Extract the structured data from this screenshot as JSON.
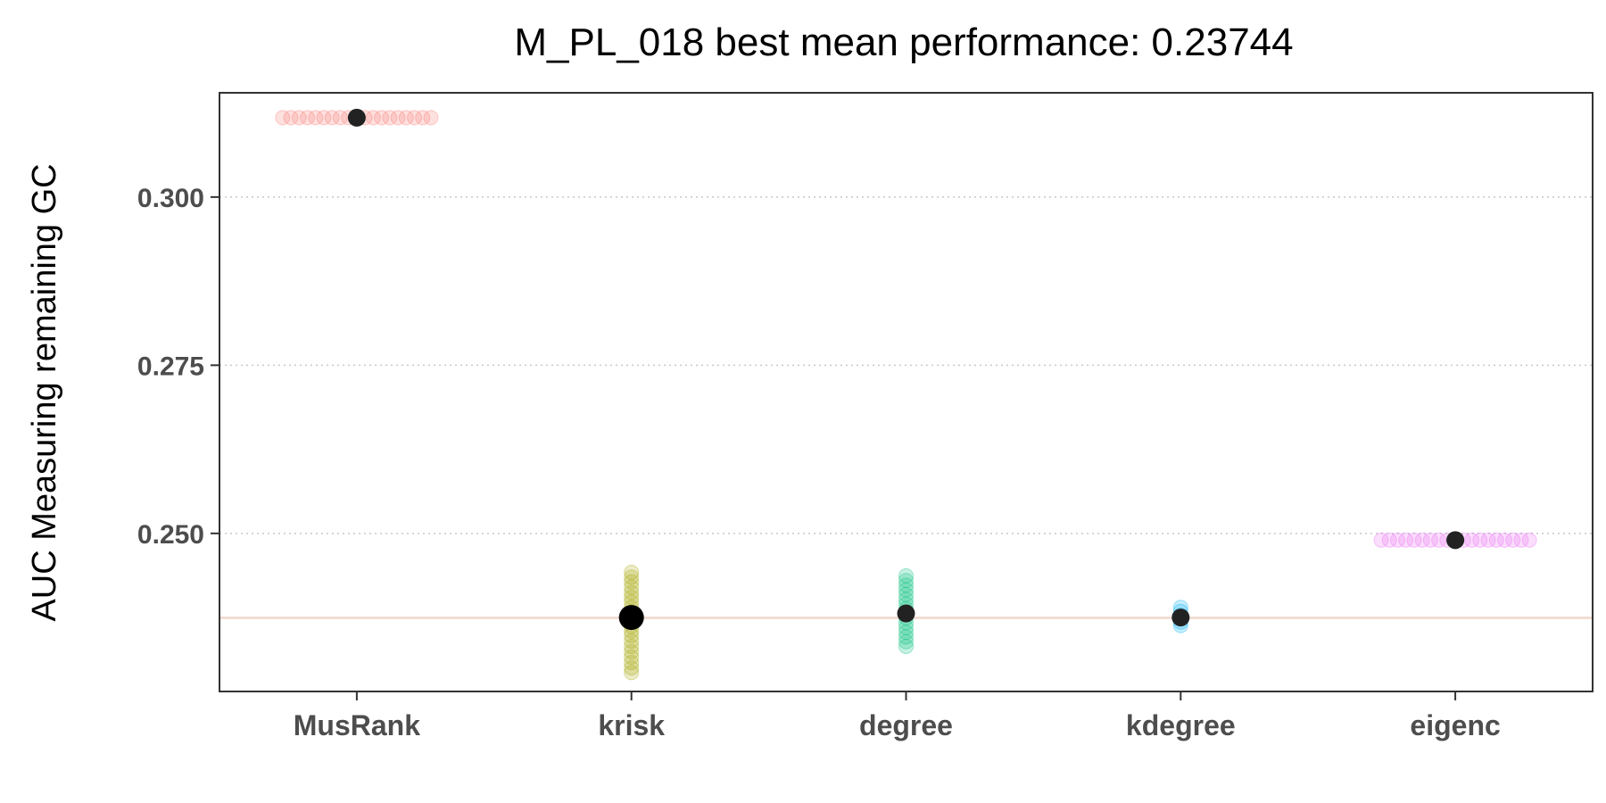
{
  "chart_data": {
    "type": "scatter",
    "title": "M_PL_018 best mean performance: 0.23744",
    "xlabel": "",
    "ylabel": "AUC Measuring remaining GC",
    "categories": [
      "MusRank",
      "krisk",
      "degree",
      "kdegree",
      "eigenc"
    ],
    "ylim": [
      0.2265,
      0.3155
    ],
    "yticks": [
      0.25,
      0.275,
      0.3
    ],
    "ytick_labels": [
      "0.250",
      "0.275",
      "0.300"
    ],
    "grid": "horizontal dotted",
    "reference_line": 0.23744,
    "series": [
      {
        "name": "MusRank",
        "color": "#F8766D",
        "mean": 0.3118,
        "points": [
          {
            "x": -0.27,
            "y": 0.3118
          },
          {
            "x": -0.24,
            "y": 0.3118
          },
          {
            "x": -0.21,
            "y": 0.3118
          },
          {
            "x": -0.18,
            "y": 0.3118
          },
          {
            "x": -0.15,
            "y": 0.3118
          },
          {
            "x": -0.12,
            "y": 0.3118
          },
          {
            "x": -0.09,
            "y": 0.3118
          },
          {
            "x": -0.06,
            "y": 0.3118
          },
          {
            "x": -0.03,
            "y": 0.3118
          },
          {
            "x": 0.0,
            "y": 0.3118
          },
          {
            "x": 0.03,
            "y": 0.3118
          },
          {
            "x": 0.06,
            "y": 0.3118
          },
          {
            "x": 0.09,
            "y": 0.3118
          },
          {
            "x": 0.12,
            "y": 0.3118
          },
          {
            "x": 0.15,
            "y": 0.3118
          },
          {
            "x": 0.18,
            "y": 0.3118
          },
          {
            "x": 0.21,
            "y": 0.3118
          },
          {
            "x": 0.24,
            "y": 0.3118
          },
          {
            "x": 0.27,
            "y": 0.3118
          }
        ]
      },
      {
        "name": "krisk",
        "color": "#A3A500",
        "mean": 0.2375,
        "points": [
          {
            "x": 0,
            "y": 0.2442
          },
          {
            "x": 0,
            "y": 0.2435
          },
          {
            "x": 0,
            "y": 0.2428
          },
          {
            "x": 0,
            "y": 0.242
          },
          {
            "x": 0,
            "y": 0.2412
          },
          {
            "x": 0,
            "y": 0.2405
          },
          {
            "x": 0,
            "y": 0.2398
          },
          {
            "x": 0,
            "y": 0.239
          },
          {
            "x": 0,
            "y": 0.2383
          },
          {
            "x": 0,
            "y": 0.2376
          },
          {
            "x": 0,
            "y": 0.2369
          },
          {
            "x": 0,
            "y": 0.2362
          },
          {
            "x": 0,
            "y": 0.2355
          },
          {
            "x": 0,
            "y": 0.2348
          },
          {
            "x": 0,
            "y": 0.234
          },
          {
            "x": 0,
            "y": 0.2332
          },
          {
            "x": 0,
            "y": 0.2324
          },
          {
            "x": 0,
            "y": 0.2316
          },
          {
            "x": 0,
            "y": 0.2308
          },
          {
            "x": 0,
            "y": 0.23
          },
          {
            "x": 0,
            "y": 0.2293
          }
        ]
      },
      {
        "name": "degree",
        "color": "#00BF7D",
        "mean": 0.2381,
        "points": [
          {
            "x": 0,
            "y": 0.2437
          },
          {
            "x": 0,
            "y": 0.243
          },
          {
            "x": 0,
            "y": 0.2423
          },
          {
            "x": 0,
            "y": 0.2416
          },
          {
            "x": 0,
            "y": 0.2409
          },
          {
            "x": 0,
            "y": 0.2402
          },
          {
            "x": 0,
            "y": 0.2395
          },
          {
            "x": 0,
            "y": 0.2388
          },
          {
            "x": 0,
            "y": 0.2381
          },
          {
            "x": 0,
            "y": 0.2374
          },
          {
            "x": 0,
            "y": 0.2367
          },
          {
            "x": 0,
            "y": 0.236
          },
          {
            "x": 0,
            "y": 0.2353
          },
          {
            "x": 0,
            "y": 0.2346
          },
          {
            "x": 0,
            "y": 0.2339
          },
          {
            "x": 0,
            "y": 0.2332
          }
        ]
      },
      {
        "name": "kdegree",
        "color": "#00B0F6",
        "mean": 0.2375,
        "points": [
          {
            "x": 0,
            "y": 0.239
          },
          {
            "x": 0,
            "y": 0.2384
          },
          {
            "x": 0,
            "y": 0.2378
          },
          {
            "x": 0,
            "y": 0.2373
          },
          {
            "x": 0,
            "y": 0.2368
          },
          {
            "x": 0,
            "y": 0.2363
          }
        ]
      },
      {
        "name": "eigenc",
        "color": "#E76BF3",
        "mean": 0.249,
        "points": [
          {
            "x": -0.27,
            "y": 0.249
          },
          {
            "x": -0.24,
            "y": 0.249
          },
          {
            "x": -0.21,
            "y": 0.249
          },
          {
            "x": -0.18,
            "y": 0.249
          },
          {
            "x": -0.15,
            "y": 0.249
          },
          {
            "x": -0.12,
            "y": 0.249
          },
          {
            "x": -0.09,
            "y": 0.249
          },
          {
            "x": -0.06,
            "y": 0.249
          },
          {
            "x": -0.03,
            "y": 0.249
          },
          {
            "x": 0.0,
            "y": 0.249
          },
          {
            "x": 0.03,
            "y": 0.249
          },
          {
            "x": 0.06,
            "y": 0.249
          },
          {
            "x": 0.09,
            "y": 0.249
          },
          {
            "x": 0.12,
            "y": 0.249
          },
          {
            "x": 0.15,
            "y": 0.249
          },
          {
            "x": 0.18,
            "y": 0.249
          },
          {
            "x": 0.21,
            "y": 0.249
          },
          {
            "x": 0.24,
            "y": 0.249
          },
          {
            "x": 0.27,
            "y": 0.249
          }
        ]
      }
    ]
  }
}
